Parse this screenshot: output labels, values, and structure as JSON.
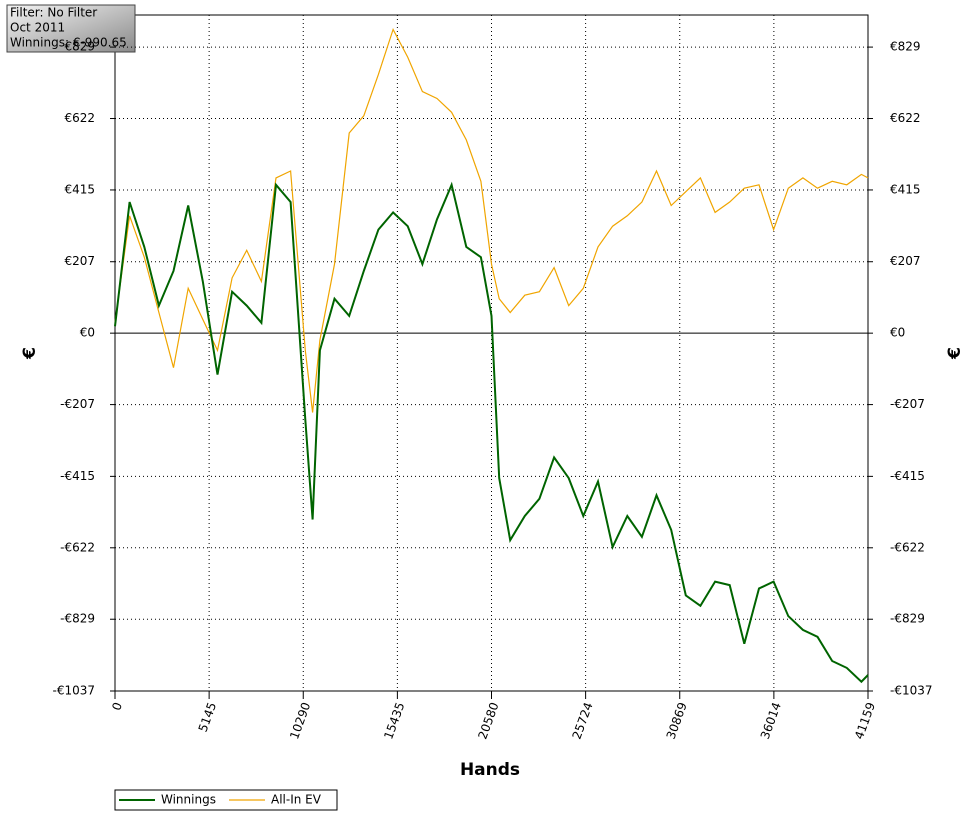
{
  "chart_data": {
    "type": "line",
    "annotations": [
      "Filter: No Filter",
      "Oct 2011",
      "Winnings: €-990.65"
    ],
    "xlabel": "Hands",
    "ylabel": "€",
    "x": [
      0,
      800,
      1600,
      2400,
      3200,
      4000,
      4800,
      5600,
      6400,
      7200,
      8000,
      8800,
      9600,
      10400,
      10800,
      11200,
      12000,
      12800,
      13600,
      14400,
      15200,
      16000,
      16800,
      17600,
      18400,
      19200,
      20000,
      20580,
      21000,
      21600,
      22400,
      23200,
      24000,
      24800,
      25600,
      26400,
      27200,
      28000,
      28800,
      29600,
      30400,
      31200,
      32000,
      32800,
      33600,
      34400,
      35200,
      36000,
      36800,
      37600,
      38400,
      39200,
      40000,
      40800,
      41159
    ],
    "series": [
      {
        "name": "Winnings",
        "color": "#006400",
        "values": [
          20,
          380,
          250,
          80,
          180,
          370,
          150,
          -120,
          120,
          80,
          30,
          430,
          380,
          -250,
          -540,
          -50,
          100,
          50,
          180,
          300,
          350,
          310,
          200,
          330,
          430,
          250,
          220,
          50,
          -420,
          -600,
          -530,
          -480,
          -360,
          -420,
          -530,
          -430,
          -620,
          -530,
          -590,
          -470,
          -570,
          -760,
          -790,
          -720,
          -730,
          -900,
          -740,
          -720,
          -820,
          -860,
          -880,
          -950,
          -970,
          -1010,
          -990.65
        ]
      },
      {
        "name": "All-In EV",
        "color": "#f0a500",
        "values": [
          30,
          340,
          220,
          60,
          -100,
          130,
          40,
          -50,
          160,
          240,
          150,
          450,
          470,
          -50,
          -230,
          -20,
          200,
          580,
          630,
          750,
          880,
          800,
          700,
          680,
          640,
          560,
          440,
          200,
          100,
          60,
          110,
          120,
          190,
          80,
          130,
          250,
          310,
          340,
          380,
          470,
          370,
          410,
          450,
          350,
          380,
          420,
          430,
          300,
          420,
          450,
          420,
          440,
          430,
          460,
          450
        ]
      }
    ],
    "xlim": [
      0,
      41159
    ],
    "xticks": [
      0,
      5145,
      10290,
      15435,
      20580,
      25724,
      30869,
      36014,
      41159
    ],
    "ylim": [
      -1037,
      922
    ],
    "yticks": [
      {
        "value": -1037,
        "label": "-€1037"
      },
      {
        "value": -829,
        "label": "-€829"
      },
      {
        "value": -622,
        "label": "-€622"
      },
      {
        "value": -415,
        "label": "-€415"
      },
      {
        "value": -207,
        "label": "-€207"
      },
      {
        "value": 0,
        "label": "€0"
      },
      {
        "value": 207,
        "label": "€207"
      },
      {
        "value": 415,
        "label": "€415"
      },
      {
        "value": 622,
        "label": "€622"
      },
      {
        "value": 829,
        "label": "€829"
      }
    ],
    "grid": true,
    "legend": "bottom-left"
  }
}
